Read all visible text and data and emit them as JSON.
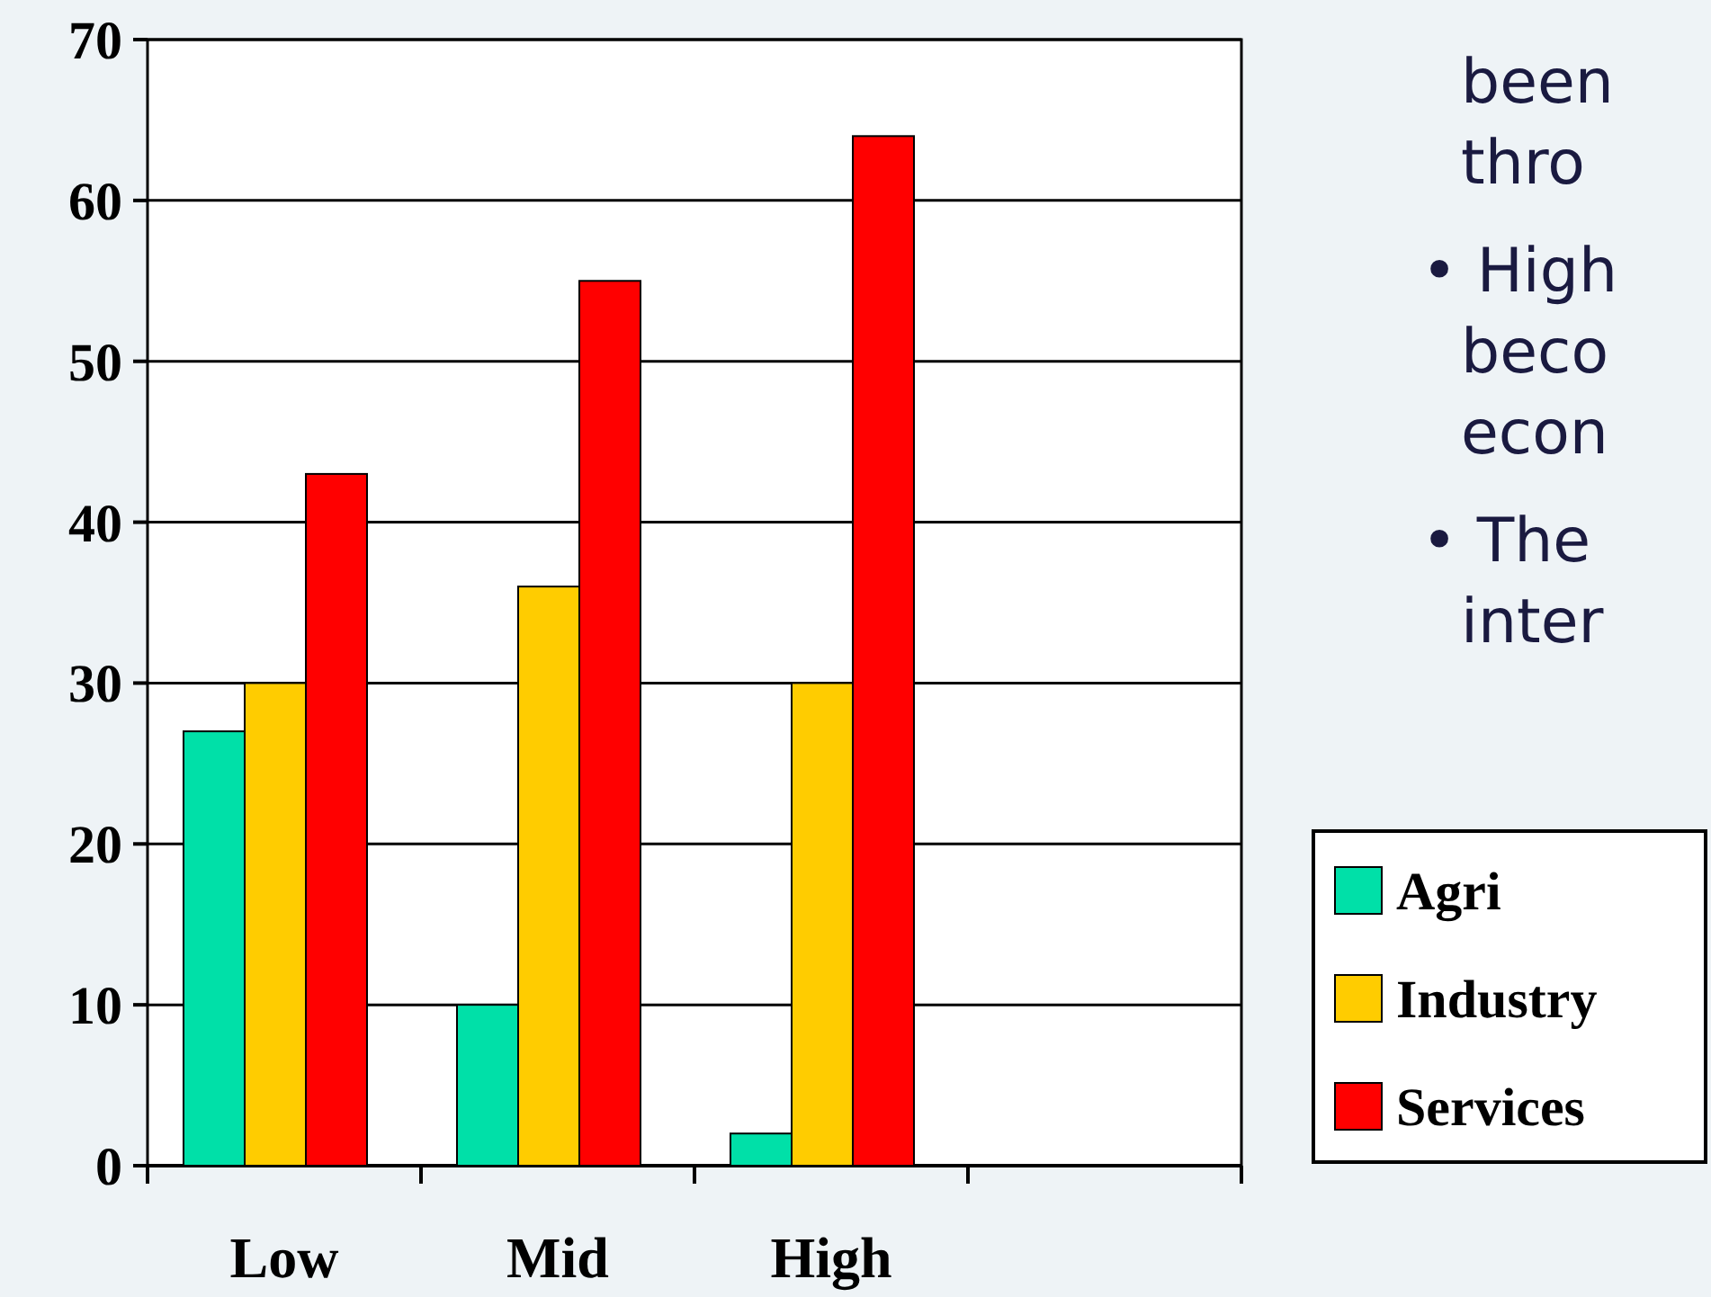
{
  "chart_data": {
    "type": "bar",
    "categories": [
      "Low",
      "Mid",
      "High",
      null
    ],
    "series": [
      {
        "name": "Agri",
        "color": "#00e0a8",
        "values": [
          27,
          10,
          2,
          null
        ]
      },
      {
        "name": "Industry",
        "color": "#ffcc00",
        "values": [
          30,
          36,
          30,
          null
        ]
      },
      {
        "name": "Services",
        "color": "#ff0000",
        "values": [
          43,
          55,
          64,
          null
        ]
      }
    ],
    "ylim": [
      0,
      70
    ],
    "yticks": [
      0,
      10,
      20,
      30,
      40,
      50,
      60,
      70
    ],
    "grid": "y",
    "legend": "right",
    "annotations": [
      "been",
      "thro",
      "• High",
      "beco",
      "econ",
      "• The",
      "inter"
    ]
  }
}
